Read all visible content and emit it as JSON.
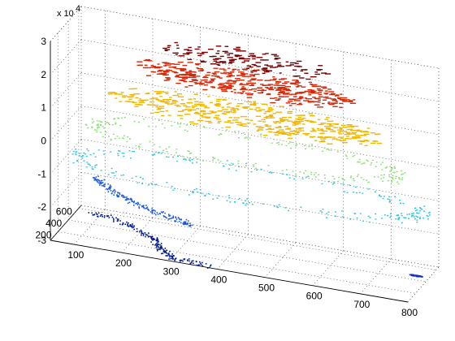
{
  "chart_data": {
    "type": "scatter3d",
    "x_ticks": [
      "100",
      "200",
      "300",
      "400",
      "500",
      "600",
      "700",
      "800"
    ],
    "y_ticks": [
      "200",
      "400",
      "600"
    ],
    "z_ticks": [
      "-3",
      "-2",
      "-1",
      "0",
      "1",
      "2",
      "3"
    ],
    "z_multiplier": "x 10",
    "z_multiplier_exp": "4",
    "xlim": [
      50,
      800
    ],
    "ylim": [
      50,
      650
    ],
    "zlim": [
      -30000,
      30000
    ],
    "grid": true,
    "colormap": "jet",
    "clusters": [
      {
        "shape": "ellipse",
        "cx": 420,
        "cy": 420,
        "z": 27000,
        "rx": 180,
        "ry": 130,
        "density": "sparse",
        "color": "#7a0000"
      },
      {
        "shape": "ellipse",
        "cx": 420,
        "cy": 420,
        "z": 20000,
        "rx": 230,
        "ry": 170,
        "density": "dense",
        "color": "#d42a0a"
      },
      {
        "shape": "ellipse",
        "cx": 420,
        "cy": 420,
        "z": 10000,
        "rx": 290,
        "ry": 200,
        "density": "dense",
        "color": "#f2b800"
      },
      {
        "shape": "ellipse",
        "cx": 420,
        "cy": 420,
        "z": 0,
        "rx": 330,
        "ry": 230,
        "density": "ring",
        "color": "#8ee07a"
      },
      {
        "shape": "ellipse",
        "cx": 430,
        "cy": 400,
        "z": -10000,
        "rx": 370,
        "ry": 260,
        "density": "ring",
        "color": "#2fc8e0"
      },
      {
        "shape": "arc",
        "z": -20000,
        "points": [
          [
            80,
            620
          ],
          [
            120,
            500
          ],
          [
            170,
            380
          ],
          [
            230,
            270
          ],
          [
            300,
            200
          ],
          [
            330,
            160
          ]
        ],
        "color": "#1e5ad8"
      },
      {
        "shape": "arc",
        "z": -30000,
        "points": [
          [
            80,
            580
          ],
          [
            160,
            500
          ],
          [
            230,
            360
          ],
          [
            260,
            220
          ],
          [
            300,
            120
          ],
          [
            380,
            80
          ]
        ],
        "color": "#001a8c"
      },
      {
        "shape": "blob",
        "z": -30000,
        "cx": 770,
        "cy": 470,
        "r": 14,
        "color": "#0a2ec8"
      }
    ]
  }
}
